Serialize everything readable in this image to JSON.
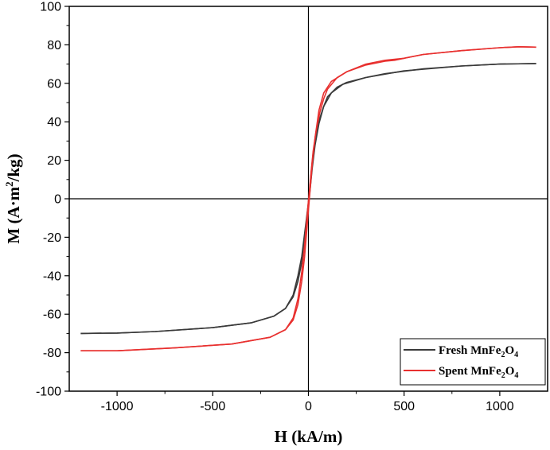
{
  "chart_data": {
    "type": "line",
    "xlabel": "H (kA/m)",
    "ylabel": {
      "main": "M (A·m",
      "sup": "2",
      "rest": "/kg)"
    },
    "xlim": [
      -1250,
      1250
    ],
    "ylim": [
      -100,
      100
    ],
    "xticks": [
      -1000,
      -500,
      0,
      500,
      1000
    ],
    "yticks": [
      -100,
      -80,
      -60,
      -40,
      -20,
      0,
      20,
      40,
      60,
      80,
      100
    ],
    "zero_lines": true,
    "grid": false,
    "legend_position": "bottom-right",
    "series": [
      {
        "name": "Fresh MnFe2O4",
        "legend": {
          "base": "Fresh MnFe",
          "s1": "2",
          "mid": "O",
          "s2": "4"
        },
        "color": "#3a3a3a",
        "descending": [
          [
            1190,
            70.3
          ],
          [
            1000,
            70.0
          ],
          [
            800,
            69.0
          ],
          [
            600,
            67.5
          ],
          [
            400,
            65.0
          ],
          [
            300,
            63.0
          ],
          [
            200,
            60.5
          ],
          [
            150,
            58.0
          ],
          [
            100,
            53.0
          ],
          [
            80,
            48.0
          ],
          [
            60,
            42.0
          ],
          [
            40,
            34.0
          ],
          [
            25,
            24.0
          ],
          [
            15,
            14.0
          ],
          [
            5,
            3.0
          ],
          [
            0,
            -2.0
          ],
          [
            -10,
            -10.0
          ],
          [
            -20,
            -18.0
          ],
          [
            -35,
            -30.0
          ],
          [
            -55,
            -40.0
          ],
          [
            -80,
            -50.0
          ],
          [
            -120,
            -57.0
          ],
          [
            -180,
            -61.0
          ],
          [
            -300,
            -64.5
          ],
          [
            -500,
            -67.0
          ],
          [
            -800,
            -69.0
          ],
          [
            -1000,
            -69.8
          ],
          [
            -1190,
            -70.0
          ]
        ],
        "ascending": [
          [
            -1190,
            -70.0
          ],
          [
            -1000,
            -69.8
          ],
          [
            -800,
            -69.0
          ],
          [
            -500,
            -67.0
          ],
          [
            -300,
            -64.5
          ],
          [
            -180,
            -61.0
          ],
          [
            -120,
            -57.0
          ],
          [
            -80,
            -51.0
          ],
          [
            -55,
            -43.0
          ],
          [
            -35,
            -33.0
          ],
          [
            -20,
            -22.0
          ],
          [
            -10,
            -12.0
          ],
          [
            0,
            -3.0
          ],
          [
            10,
            6.0
          ],
          [
            20,
            16.0
          ],
          [
            35,
            28.0
          ],
          [
            55,
            39.0
          ],
          [
            80,
            48.0
          ],
          [
            120,
            55.0
          ],
          [
            180,
            59.5
          ],
          [
            300,
            63.0
          ],
          [
            500,
            66.5
          ],
          [
            800,
            69.0
          ],
          [
            1000,
            70.0
          ],
          [
            1190,
            70.3
          ]
        ]
      },
      {
        "name": "Spent MnFe2O4",
        "legend": {
          "base": "Spent MnFe",
          "s1": "2",
          "mid": "O",
          "s2": "4"
        },
        "color": "#e8302f",
        "descending": [
          [
            1190,
            78.8
          ],
          [
            1100,
            79.0
          ],
          [
            1000,
            78.5
          ],
          [
            800,
            77.0
          ],
          [
            600,
            75.0
          ],
          [
            500,
            73.0
          ],
          [
            450,
            72.5
          ],
          [
            400,
            72.0
          ],
          [
            300,
            70.0
          ],
          [
            200,
            66.0
          ],
          [
            150,
            63.0
          ],
          [
            100,
            57.0
          ],
          [
            80,
            52.0
          ],
          [
            60,
            45.0
          ],
          [
            40,
            35.0
          ],
          [
            25,
            25.0
          ],
          [
            15,
            15.0
          ],
          [
            5,
            4.0
          ],
          [
            0,
            -1.0
          ],
          [
            -10,
            -12.0
          ],
          [
            -20,
            -24.0
          ],
          [
            -35,
            -38.0
          ],
          [
            -55,
            -52.0
          ],
          [
            -80,
            -62.0
          ],
          [
            -120,
            -68.0
          ],
          [
            -200,
            -72.0
          ],
          [
            -400,
            -75.5
          ],
          [
            -700,
            -77.5
          ],
          [
            -1000,
            -79.0
          ],
          [
            -1190,
            -79.0
          ]
        ],
        "ascending": [
          [
            -1190,
            -79.0
          ],
          [
            -1000,
            -79.0
          ],
          [
            -700,
            -77.5
          ],
          [
            -400,
            -75.5
          ],
          [
            -200,
            -72.0
          ],
          [
            -120,
            -68.0
          ],
          [
            -80,
            -63.0
          ],
          [
            -55,
            -55.0
          ],
          [
            -35,
            -43.0
          ],
          [
            -20,
            -30.0
          ],
          [
            -10,
            -18.0
          ],
          [
            0,
            -6.0
          ],
          [
            10,
            6.0
          ],
          [
            20,
            18.0
          ],
          [
            35,
            32.0
          ],
          [
            55,
            46.0
          ],
          [
            80,
            55.0
          ],
          [
            120,
            61.0
          ],
          [
            200,
            66.0
          ],
          [
            300,
            69.5
          ],
          [
            400,
            71.5
          ],
          [
            450,
            72.0
          ],
          [
            500,
            73.0
          ],
          [
            600,
            75.0
          ],
          [
            800,
            77.0
          ],
          [
            1000,
            78.5
          ],
          [
            1100,
            79.0
          ],
          [
            1190,
            78.8
          ]
        ]
      }
    ]
  }
}
